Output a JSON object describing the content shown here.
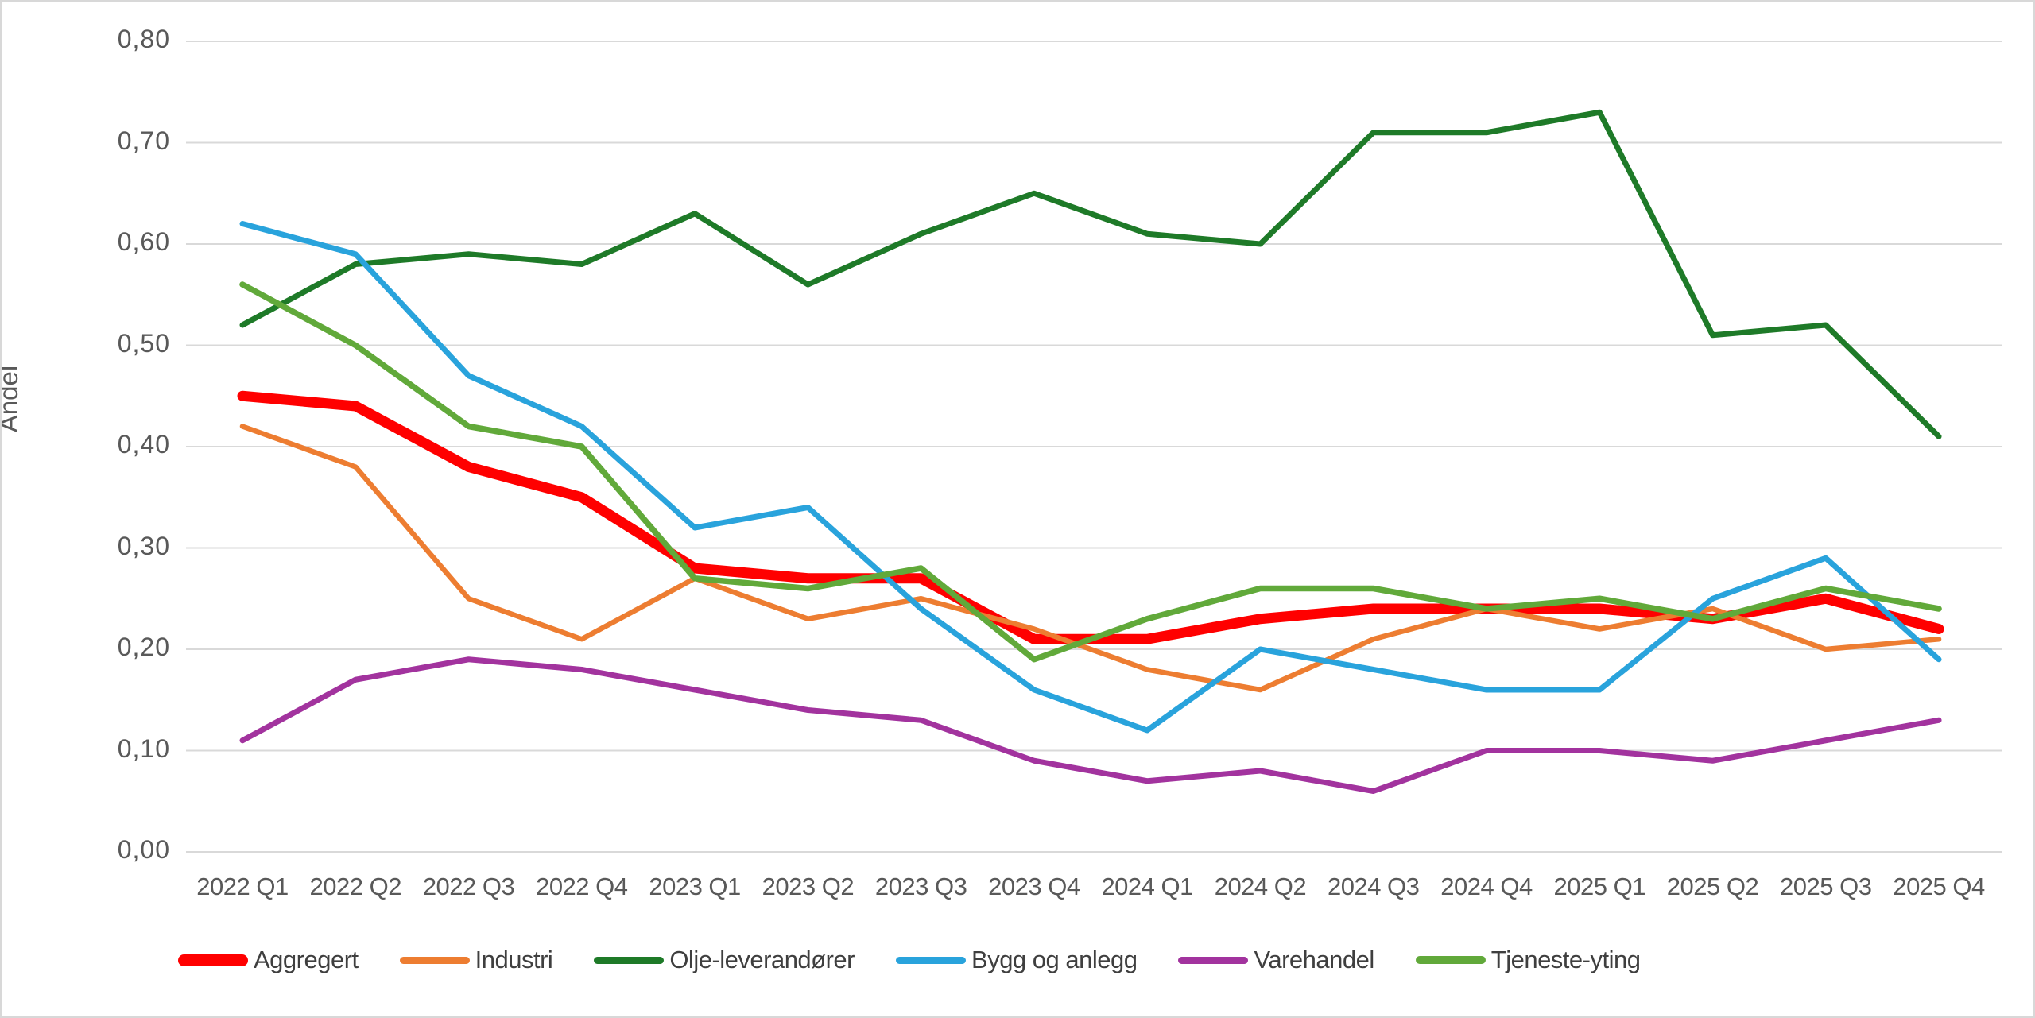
{
  "chart_data": {
    "type": "line",
    "title": "",
    "xlabel": "",
    "ylabel": "Andel",
    "ylim": [
      0,
      0.8
    ],
    "grid": true,
    "legend_position": "bottom",
    "decimal_separator": ",",
    "categories": [
      "2022 Q1",
      "2022 Q2",
      "2022 Q3",
      "2022 Q4",
      "2023 Q1",
      "2023 Q2",
      "2023 Q3",
      "2023 Q4",
      "2024 Q1",
      "2024 Q2",
      "2024 Q3",
      "2024 Q4",
      "2025 Q1",
      "2025 Q2",
      "2025 Q3",
      "2025 Q4"
    ],
    "ytick_labels": [
      "0,00",
      "0,10",
      "0,20",
      "0,30",
      "0,40",
      "0,50",
      "0,60",
      "0,70",
      "0,80"
    ],
    "series": [
      {
        "name": "Aggregert",
        "color": "#FF0000",
        "width": 13,
        "values": [
          0.45,
          0.44,
          0.38,
          0.35,
          0.28,
          0.27,
          0.27,
          0.21,
          0.21,
          0.23,
          0.24,
          0.24,
          0.24,
          0.23,
          0.25,
          0.22
        ]
      },
      {
        "name": "Industri",
        "color": "#ED7D31",
        "width": 6.5,
        "values": [
          0.42,
          0.38,
          0.25,
          0.21,
          0.27,
          0.23,
          0.25,
          0.22,
          0.18,
          0.16,
          0.21,
          0.24,
          0.22,
          0.24,
          0.2,
          0.21
        ]
      },
      {
        "name": "Olje-leverandører",
        "color": "#1E7A28",
        "width": 7,
        "values": [
          0.52,
          0.58,
          0.59,
          0.58,
          0.63,
          0.56,
          0.61,
          0.65,
          0.61,
          0.6,
          0.71,
          0.71,
          0.73,
          0.51,
          0.52,
          0.41
        ]
      },
      {
        "name": "Bygg og anlegg",
        "color": "#29A3DC",
        "width": 7,
        "values": [
          0.62,
          0.59,
          0.47,
          0.42,
          0.32,
          0.34,
          0.24,
          0.16,
          0.12,
          0.2,
          0.18,
          0.16,
          0.16,
          0.25,
          0.29,
          0.19
        ]
      },
      {
        "name": "Varehandel",
        "color": "#A2339E",
        "width": 7,
        "values": [
          0.11,
          0.17,
          0.19,
          0.18,
          0.16,
          0.14,
          0.13,
          0.09,
          0.07,
          0.08,
          0.06,
          0.1,
          0.1,
          0.09,
          0.11,
          0.13
        ]
      },
      {
        "name": "Tjeneste-yting",
        "color": "#61A93A",
        "width": 7.5,
        "values": [
          0.56,
          0.5,
          0.42,
          0.4,
          0.27,
          0.26,
          0.28,
          0.19,
          0.23,
          0.26,
          0.26,
          0.24,
          0.25,
          0.23,
          0.26,
          0.24
        ]
      }
    ]
  },
  "colors": {
    "grid": "#D9D9D9",
    "axis_text": "#595959",
    "legend_text": "#3F3F3F",
    "background": "#FFFFFF",
    "frame_border": "#D8D8D8"
  }
}
